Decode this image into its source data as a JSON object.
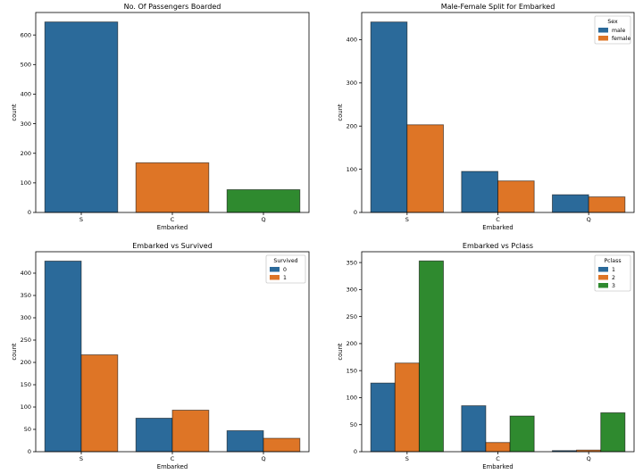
{
  "colors": {
    "blue": "#2b6a9a",
    "orange": "#de7526",
    "green": "#2f8a2f"
  },
  "chart_data": [
    {
      "type": "bar",
      "title": "No. Of Passengers Boarded",
      "xlabel": "Embarked",
      "ylabel": "count",
      "categories": [
        "S",
        "C",
        "Q"
      ],
      "bar_colors": [
        "#2b6a9a",
        "#de7526",
        "#2f8a2f"
      ],
      "values": [
        644,
        168,
        77
      ],
      "ylim": [
        0,
        676
      ],
      "yticks": [
        0,
        100,
        200,
        300,
        400,
        500,
        600
      ],
      "grid": false
    },
    {
      "type": "bar",
      "title": "Male-Female Split for Embarked",
      "xlabel": "Embarked",
      "ylabel": "count",
      "categories": [
        "S",
        "C",
        "Q"
      ],
      "legend": {
        "title": "Sex",
        "placement": "top-right"
      },
      "series": [
        {
          "name": "male",
          "color": "#2b6a9a",
          "values": [
            441,
            95,
            41
          ]
        },
        {
          "name": "female",
          "color": "#de7526",
          "values": [
            203,
            73,
            36
          ]
        }
      ],
      "ylim": [
        0,
        463
      ],
      "yticks": [
        0,
        100,
        200,
        300,
        400
      ],
      "grid": false
    },
    {
      "type": "bar",
      "title": "Embarked vs Survived",
      "xlabel": "Embarked",
      "ylabel": "count",
      "categories": [
        "S",
        "C",
        "Q"
      ],
      "legend": {
        "title": "Survived",
        "placement": "top-right"
      },
      "series": [
        {
          "name": "0",
          "color": "#2b6a9a",
          "values": [
            427,
            75,
            47
          ]
        },
        {
          "name": "1",
          "color": "#de7526",
          "values": [
            217,
            93,
            30
          ]
        }
      ],
      "ylim": [
        0,
        448
      ],
      "yticks": [
        0,
        50,
        100,
        150,
        200,
        250,
        300,
        350,
        400
      ],
      "grid": false
    },
    {
      "type": "bar",
      "title": "Embarked vs Pclass",
      "xlabel": "Embarked",
      "ylabel": "count",
      "categories": [
        "S",
        "C",
        "Q"
      ],
      "legend": {
        "title": "Pclass",
        "placement": "top-right"
      },
      "series": [
        {
          "name": "1",
          "color": "#2b6a9a",
          "values": [
            127,
            85,
            2
          ]
        },
        {
          "name": "2",
          "color": "#de7526",
          "values": [
            164,
            17,
            3
          ]
        },
        {
          "name": "3",
          "color": "#2f8a2f",
          "values": [
            353,
            66,
            72
          ]
        }
      ],
      "ylim": [
        0,
        370
      ],
      "yticks": [
        0,
        50,
        100,
        150,
        200,
        250,
        300,
        350
      ],
      "grid": false
    }
  ]
}
